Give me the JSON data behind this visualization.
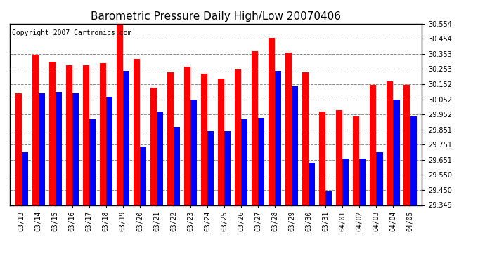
{
  "title": "Barometric Pressure Daily High/Low 20070406",
  "copyright": "Copyright 2007 Cartronics.com",
  "dates": [
    "03/13",
    "03/14",
    "03/15",
    "03/16",
    "03/17",
    "03/18",
    "03/19",
    "03/20",
    "03/21",
    "03/22",
    "03/23",
    "03/24",
    "03/25",
    "03/26",
    "03/27",
    "03/28",
    "03/29",
    "03/30",
    "03/31",
    "04/01",
    "04/02",
    "04/03",
    "04/04",
    "04/05"
  ],
  "highs": [
    30.09,
    30.35,
    30.3,
    30.28,
    30.28,
    30.29,
    30.55,
    30.32,
    30.13,
    30.23,
    30.27,
    30.22,
    30.19,
    30.25,
    30.37,
    30.46,
    30.36,
    30.23,
    29.97,
    29.98,
    29.94,
    30.15,
    30.17,
    30.15
  ],
  "lows": [
    29.7,
    30.09,
    30.1,
    30.09,
    29.92,
    30.07,
    30.24,
    29.74,
    29.97,
    29.87,
    30.05,
    29.84,
    29.84,
    29.92,
    29.93,
    30.24,
    30.14,
    29.63,
    29.44,
    29.66,
    29.66,
    29.7,
    30.05,
    29.94
  ],
  "high_color": "#ff0000",
  "low_color": "#0000ff",
  "bg_color": "#ffffff",
  "plot_bg_color": "#ffffff",
  "grid_color": "#888888",
  "ymin": 29.349,
  "ymax": 30.554,
  "yticks": [
    30.554,
    30.454,
    30.353,
    30.253,
    30.152,
    30.052,
    29.952,
    29.851,
    29.751,
    29.651,
    29.55,
    29.45,
    29.349
  ],
  "title_fontsize": 11,
  "copyright_fontsize": 7,
  "bar_width": 0.38
}
